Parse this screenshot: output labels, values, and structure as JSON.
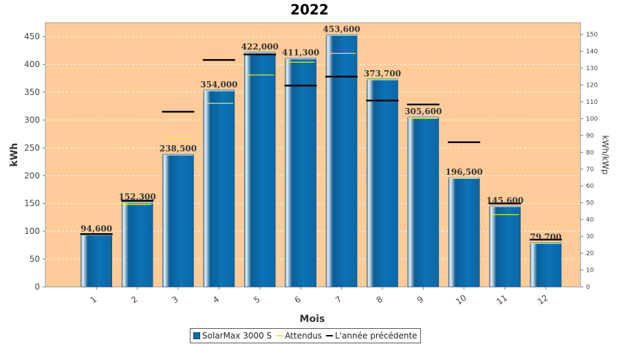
{
  "chart_data": {
    "type": "bar",
    "title": "2022",
    "xlabel": "Mois",
    "ylabel": "kWh",
    "y2label": "kWh/kWp",
    "ylim": [
      0,
      475
    ],
    "y2lim": [
      0,
      157
    ],
    "yticks": [
      0,
      50,
      100,
      150,
      200,
      250,
      300,
      350,
      400,
      450
    ],
    "y2ticks": [
      0,
      10,
      20,
      30,
      40,
      50,
      60,
      70,
      80,
      90,
      100,
      110,
      120,
      130,
      140,
      150
    ],
    "categories": [
      "1",
      "2",
      "3",
      "4",
      "5",
      "6",
      "7",
      "8",
      "9",
      "10",
      "11",
      "12"
    ],
    "series": [
      {
        "name": "SolarMax 3000 S",
        "kind": "bar",
        "color": "#0b6fb0",
        "values": [
          94.6,
          152.3,
          238.5,
          354.0,
          422.0,
          411.3,
          453.6,
          373.7,
          305.6,
          196.5,
          145.6,
          79.7
        ],
        "labels": [
          "94,600",
          "152,300",
          "238,500",
          "354,000",
          "422,000",
          "411,300",
          "453,600",
          "373,700",
          "305,600",
          "196,500",
          "145,600",
          "79,700"
        ]
      },
      {
        "name": "Attendus",
        "kind": "marker",
        "color": "#f2ea2e",
        "values": [
          95,
          148,
          268,
          330,
          381,
          404,
          420,
          375,
          303,
          196,
          130,
          81
        ]
      },
      {
        "name": "L'année précédente",
        "kind": "marker",
        "color": "#000000",
        "values": [
          95,
          155,
          315,
          408,
          418,
          362,
          378,
          335,
          328,
          260,
          150,
          85
        ]
      }
    ],
    "legend_position": "bottom",
    "plot_background": "#ffcc99",
    "grid": true
  }
}
